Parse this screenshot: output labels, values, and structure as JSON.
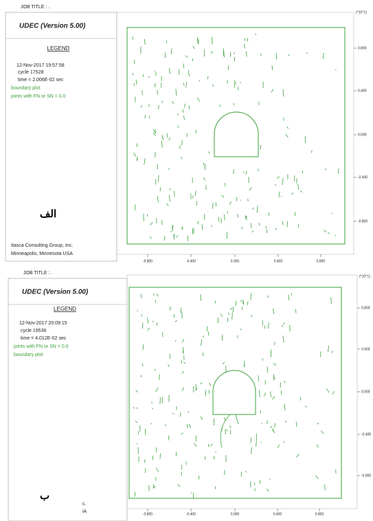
{
  "panels": [
    {
      "job_title": "JOB TITLE : .",
      "program": "UDEC (Version 5.00)",
      "legend_title": "LEGEND",
      "date": "12-Nov-2017  19:57:58",
      "cycle": "cycle    17528",
      "time": "time  =  2.006E-02 sec",
      "legend_items": [
        "boundary plot",
        "joints with FN or SN = 0.0"
      ],
      "footer": [
        "Itasca Consulting Group, Inc.",
        "Minneapolis, Minnesota  USA"
      ],
      "scale": "(*10^1)",
      "y_tick_labels": [
        "0.800",
        "0.400",
        "0.000",
        "-0.400",
        "-0.800"
      ],
      "x_tick_labels": [
        "-0.800",
        "-0.400",
        "0.000",
        "0.400",
        "0.800"
      ],
      "label": "الف"
    },
    {
      "job_title": "JOB TITLE : .",
      "program": "UDEC (Version 5.00)",
      "legend_title": "LEGEND",
      "date": "12-Nov-2017  20:09:15",
      "cycle": "cycle    19536",
      "time": "time  =  4.012E-02 sec",
      "legend_items": [
        "joints with FN or SN = 0.0",
        "boundary plot"
      ],
      "footer": [
        "c.",
        "iA"
      ],
      "scale": "(*10^1)",
      "y_tick_labels": [
        "0.800",
        "0.400",
        "0.000",
        "-0.400",
        "-0.800"
      ],
      "x_tick_labels": [
        "-0.800",
        "-0.400",
        "0.000",
        "0.400",
        "0.800"
      ],
      "label": "ب"
    }
  ]
}
